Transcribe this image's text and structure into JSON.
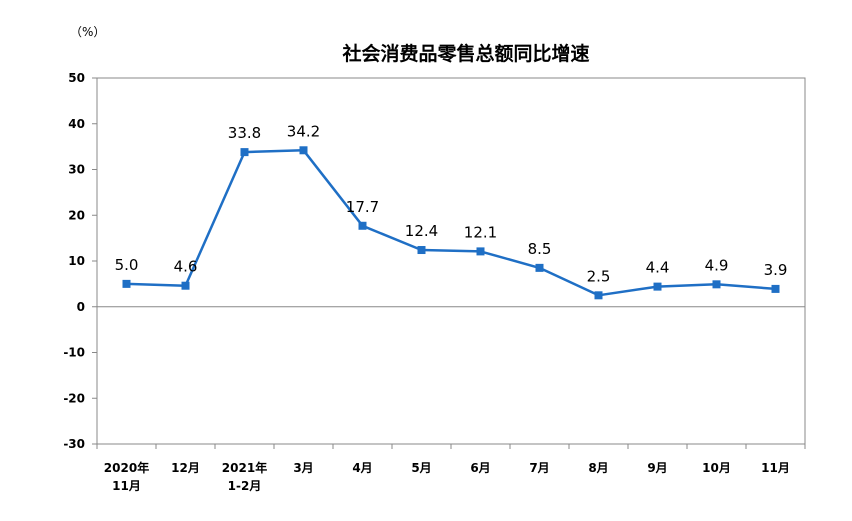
{
  "chart_data": {
    "type": "line",
    "title": "社会消费品零售总额同比增速",
    "unit_label": "（%）",
    "xlabel": "",
    "ylabel": "",
    "ylim": [
      -30,
      50
    ],
    "yticks": [
      50,
      40,
      30,
      20,
      10,
      0,
      -10,
      -20,
      -30
    ],
    "ytick_labels": [
      "50",
      "40",
      "30",
      "20",
      "10",
      "0",
      "-10",
      "-20",
      "-30"
    ],
    "grid": false,
    "legend": "none",
    "categories": [
      [
        "2020年",
        "11月"
      ],
      [
        "12月"
      ],
      [
        "2021年",
        "1-2月"
      ],
      [
        "3月"
      ],
      [
        "4月"
      ],
      [
        "5月"
      ],
      [
        "6月"
      ],
      [
        "7月"
      ],
      [
        "8月"
      ],
      [
        "9月"
      ],
      [
        "10月"
      ],
      [
        "11月"
      ]
    ],
    "series": [
      {
        "color": "#1F6FC5",
        "values": [
          5.0,
          4.6,
          33.8,
          34.2,
          17.7,
          12.4,
          12.1,
          8.5,
          2.5,
          4.4,
          4.9,
          3.9
        ],
        "value_labels": [
          "5.0",
          "4.6",
          "33.8",
          "34.2",
          "17.7",
          "12.4",
          "12.1",
          "8.5",
          "2.5",
          "4.4",
          "4.9",
          "3.9"
        ]
      }
    ]
  }
}
